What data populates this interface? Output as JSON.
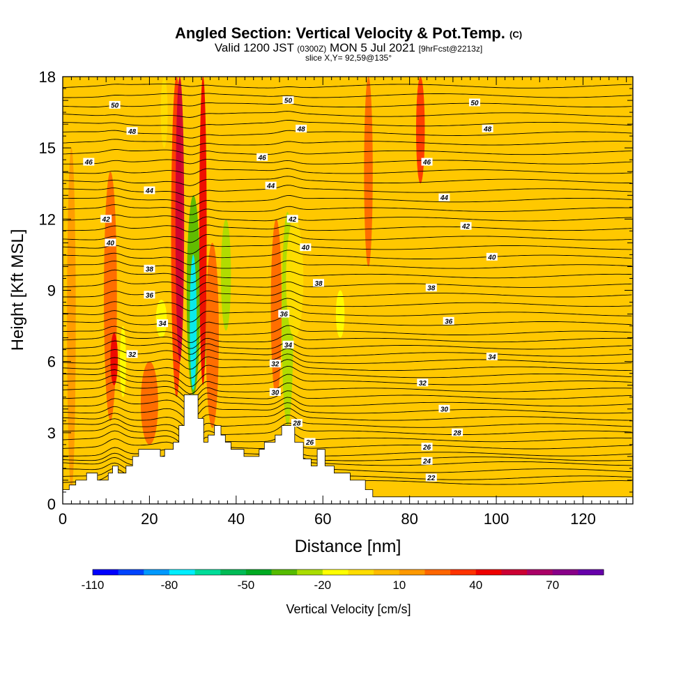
{
  "title": {
    "main": "Angled Section: Vertical Velocity & Pot.Temp.",
    "main_suffix": "(C)",
    "valid_prefix": "Valid 1200 JST",
    "valid_utc": "(0300Z)",
    "valid_date": "MON 5 Jul 2021",
    "forecast": "[9hrFcst@2213z]",
    "slice": "slice X,Y= 92,59@135°"
  },
  "chart_data": {
    "type": "heatmap",
    "xlabel": "Distance [nm]",
    "ylabel": "Height [Kft MSL]",
    "xlim": [
      0,
      131.5
    ],
    "ylim": [
      0,
      18
    ],
    "x_ticks": [
      "0",
      "20",
      "40",
      "60",
      "80",
      "100",
      "120"
    ],
    "x_tick_values": [
      0,
      20,
      40,
      60,
      80,
      100,
      120
    ],
    "y_ticks": [
      "0",
      "3",
      "6",
      "9",
      "12",
      "15",
      "18"
    ],
    "y_tick_values": [
      0,
      3,
      6,
      9,
      12,
      15,
      18
    ],
    "background_color": "#ffc800",
    "terrain": [
      [
        0,
        0.6
      ],
      [
        1.5,
        0.6
      ],
      [
        1.5,
        0.8
      ],
      [
        3,
        0.8
      ],
      [
        3,
        1.0
      ],
      [
        5.5,
        1.0
      ],
      [
        5.5,
        1.3
      ],
      [
        8,
        1.3
      ],
      [
        8,
        1.0
      ],
      [
        10.5,
        1.0
      ],
      [
        10.5,
        1.3
      ],
      [
        11.5,
        1.3
      ],
      [
        11.5,
        1.6
      ],
      [
        12.8,
        1.6
      ],
      [
        12.8,
        1.3
      ],
      [
        14.6,
        1.3
      ],
      [
        14.6,
        1.6
      ],
      [
        16.1,
        1.6
      ],
      [
        16.1,
        2.0
      ],
      [
        17.5,
        2.0
      ],
      [
        17.5,
        2.3
      ],
      [
        22.5,
        2.3
      ],
      [
        22.5,
        2.0
      ],
      [
        23.5,
        2.0
      ],
      [
        23.5,
        2.3
      ],
      [
        25.5,
        2.3
      ],
      [
        25.5,
        2.6
      ],
      [
        26.8,
        2.6
      ],
      [
        26.8,
        3.3
      ],
      [
        28,
        3.3
      ],
      [
        28,
        4.6
      ],
      [
        31.2,
        4.6
      ],
      [
        31.2,
        3.6
      ],
      [
        32.5,
        3.6
      ],
      [
        32.5,
        2.6
      ],
      [
        33.5,
        2.6
      ],
      [
        33.5,
        2.9
      ],
      [
        35,
        2.9
      ],
      [
        35,
        3.3
      ],
      [
        36.5,
        3.3
      ],
      [
        36.5,
        2.9
      ],
      [
        37.5,
        2.9
      ],
      [
        37.5,
        2.6
      ],
      [
        38.8,
        2.6
      ],
      [
        38.8,
        2.3
      ],
      [
        41.8,
        2.3
      ],
      [
        41.8,
        2.0
      ],
      [
        45.3,
        2.0
      ],
      [
        45.3,
        2.3
      ],
      [
        46.5,
        2.3
      ],
      [
        46.5,
        2.6
      ],
      [
        49,
        2.6
      ],
      [
        49,
        2.9
      ],
      [
        50.5,
        2.9
      ],
      [
        50.5,
        3.3
      ],
      [
        53.5,
        3.3
      ],
      [
        53.5,
        2.6
      ],
      [
        55.5,
        2.6
      ],
      [
        55.5,
        1.9
      ],
      [
        57.3,
        1.9
      ],
      [
        57.3,
        1.6
      ],
      [
        58.7,
        1.6
      ],
      [
        58.7,
        2.3
      ],
      [
        60.5,
        2.3
      ],
      [
        60.5,
        1.6
      ],
      [
        62.6,
        1.6
      ],
      [
        62.6,
        1.3
      ],
      [
        66.3,
        1.3
      ],
      [
        66.3,
        1.0
      ],
      [
        69.8,
        1.0
      ],
      [
        69.8,
        0.6
      ],
      [
        71.5,
        0.6
      ],
      [
        71.5,
        0.3
      ],
      [
        131.5,
        0.3
      ]
    ],
    "velocity_bands": [
      {
        "x": [
          1,
          3
        ],
        "y": [
          0.6,
          15
        ],
        "value": 10
      },
      {
        "x": [
          9.5,
          12.5
        ],
        "y": [
          3.5,
          14
        ],
        "value": 20
      },
      {
        "x": [
          11,
          12.7
        ],
        "y": [
          5,
          7.2
        ],
        "value": 40
      },
      {
        "x": [
          13.2,
          14.6
        ],
        "y": [
          4.5,
          7.5
        ],
        "value": -20
      },
      {
        "x": [
          18,
          22
        ],
        "y": [
          2.5,
          6
        ],
        "value": 20
      },
      {
        "x": [
          21.5,
          24
        ],
        "y": [
          7,
          8.6
        ],
        "value": -20
      },
      {
        "x": [
          22.6,
          24.2
        ],
        "y": [
          15,
          18
        ],
        "value": -10
      },
      {
        "x": [
          25,
          27.5
        ],
        "y": [
          4.5,
          18
        ],
        "value": 30
      },
      {
        "x": [
          26,
          28
        ],
        "y": [
          6,
          18
        ],
        "value": 50
      },
      {
        "x": [
          28.6,
          31.7
        ],
        "y": [
          4.6,
          13
        ],
        "value": -40
      },
      {
        "x": [
          29.3,
          30.9
        ],
        "y": [
          4.8,
          10.5
        ],
        "value": -80
      },
      {
        "x": [
          32.2,
          33.5
        ],
        "y": [
          5.8,
          8.5
        ],
        "value": -30
      },
      {
        "x": [
          31.5,
          33.2
        ],
        "y": [
          5,
          18
        ],
        "value": 40
      },
      {
        "x": [
          33,
          36
        ],
        "y": [
          3.2,
          11
        ],
        "value": 20
      },
      {
        "x": [
          36.5,
          38.8
        ],
        "y": [
          7.3,
          12
        ],
        "value": -30
      },
      {
        "x": [
          48,
          50.5
        ],
        "y": [
          4.5,
          12
        ],
        "value": 20
      },
      {
        "x": [
          50.5,
          53.2
        ],
        "y": [
          3.3,
          12.3
        ],
        "value": -30
      },
      {
        "x": [
          51.5,
          55.5
        ],
        "y": [
          7,
          12
        ],
        "value": -10
      },
      {
        "x": [
          63,
          65
        ],
        "y": [
          7,
          9
        ],
        "value": -20
      },
      {
        "x": [
          69.5,
          71.5
        ],
        "y": [
          10,
          18
        ],
        "value": 20
      },
      {
        "x": [
          81.5,
          83.5
        ],
        "y": [
          13.5,
          18
        ],
        "value": 30
      }
    ],
    "velocity_labels": [
      "-110",
      "-80",
      "-50",
      "-20",
      "10",
      "40",
      "70"
    ],
    "velocity_levels": [
      -110,
      -80,
      -50,
      -20,
      10,
      40,
      70
    ],
    "colorbar_label": "Vertical Velocity [cm/s]",
    "colorbar_colors": [
      "#0000ff",
      "#0044ff",
      "#0099ff",
      "#00eeff",
      "#00dd99",
      "#00bb55",
      "#00aa22",
      "#55bb00",
      "#aadd00",
      "#ffff00",
      "#ffdd00",
      "#ffbb00",
      "#ff9900",
      "#ff6600",
      "#ff3300",
      "#ee0000",
      "#cc0033",
      "#aa0066",
      "#880088",
      "#6600aa"
    ],
    "theta_labels": [
      {
        "text": "50",
        "x": 12,
        "y": 16.8
      },
      {
        "text": "48",
        "x": 16,
        "y": 15.7
      },
      {
        "text": "46",
        "x": 6,
        "y": 14.4
      },
      {
        "text": "44",
        "x": 20,
        "y": 13.2
      },
      {
        "text": "42",
        "x": 10,
        "y": 12.0
      },
      {
        "text": "40",
        "x": 11,
        "y": 11.0
      },
      {
        "text": "38",
        "x": 20,
        "y": 9.9
      },
      {
        "text": "36",
        "x": 20,
        "y": 8.8
      },
      {
        "text": "34",
        "x": 23,
        "y": 7.6
      },
      {
        "text": "32",
        "x": 16,
        "y": 6.3
      },
      {
        "text": "50",
        "x": 52,
        "y": 17.0
      },
      {
        "text": "48",
        "x": 55,
        "y": 15.8
      },
      {
        "text": "46",
        "x": 46,
        "y": 14.6
      },
      {
        "text": "44",
        "x": 48,
        "y": 13.4
      },
      {
        "text": "42",
        "x": 53,
        "y": 12.0
      },
      {
        "text": "40",
        "x": 56,
        "y": 10.8
      },
      {
        "text": "38",
        "x": 59,
        "y": 9.3
      },
      {
        "text": "36",
        "x": 51,
        "y": 8.0
      },
      {
        "text": "34",
        "x": 52,
        "y": 6.7
      },
      {
        "text": "32",
        "x": 49,
        "y": 5.9
      },
      {
        "text": "30",
        "x": 49,
        "y": 4.7
      },
      {
        "text": "28",
        "x": 54,
        "y": 3.4
      },
      {
        "text": "26",
        "x": 57,
        "y": 2.6
      },
      {
        "text": "50",
        "x": 95,
        "y": 16.9
      },
      {
        "text": "48",
        "x": 98,
        "y": 15.8
      },
      {
        "text": "46",
        "x": 84,
        "y": 14.4
      },
      {
        "text": "44",
        "x": 88,
        "y": 12.9
      },
      {
        "text": "42",
        "x": 93,
        "y": 11.7
      },
      {
        "text": "40",
        "x": 99,
        "y": 10.4
      },
      {
        "text": "38",
        "x": 85,
        "y": 9.1
      },
      {
        "text": "36",
        "x": 89,
        "y": 7.7
      },
      {
        "text": "34",
        "x": 99,
        "y": 6.2
      },
      {
        "text": "32",
        "x": 83,
        "y": 5.1
      },
      {
        "text": "30",
        "x": 88,
        "y": 4.0
      },
      {
        "text": "28",
        "x": 91,
        "y": 3.0
      },
      {
        "text": "26",
        "x": 84,
        "y": 2.4
      },
      {
        "text": "24",
        "x": 84,
        "y": 1.8
      },
      {
        "text": "22",
        "x": 85,
        "y": 1.1
      }
    ],
    "contour_heights": [
      0.9,
      1.1,
      1.4,
      1.7,
      1.9,
      2.1,
      2.4,
      2.7,
      3.0,
      3.3,
      3.6,
      3.9,
      4.2,
      4.5,
      4.8,
      5.1,
      5.4,
      5.7,
      6.0,
      6.3,
      6.6,
      6.9,
      7.2,
      7.6,
      8.0,
      8.4,
      8.8,
      9.2,
      9.6,
      10.0,
      10.4,
      10.8,
      11.2,
      11.6,
      12.0,
      12.4,
      12.8,
      13.2,
      13.6,
      14.0,
      14.4,
      14.8,
      15.2,
      15.6,
      16.0,
      16.4,
      16.8,
      17.2,
      17.6
    ]
  }
}
